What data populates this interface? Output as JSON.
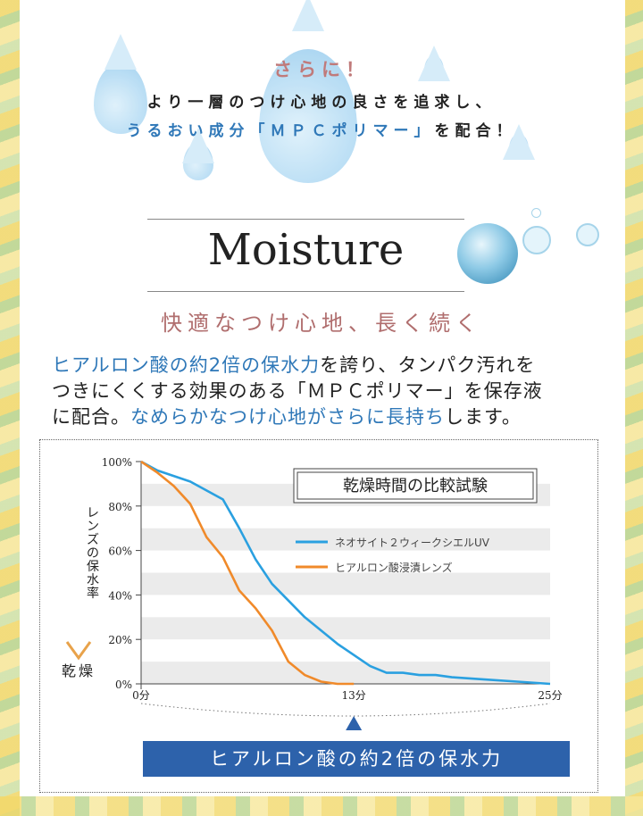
{
  "header": {
    "sarani": "さらに！",
    "line1": "より一層のつけ心地の良さを追求し、",
    "line2_pre": "うるおい成分「ＭＰＣポリマー」",
    "line2_post": "を配合！"
  },
  "section_title": "Moisture",
  "subhead": "快適なつけ心地、長く続く",
  "paragraph": {
    "p1_blue": "ヒアルロン酸の約2倍の保水力",
    "p1_rest": "を誇り、タンパク汚れを",
    "p2": "つきにくくする効果のある「ＭＰＣポリマー」を保存液",
    "p3_pre": "に配合。",
    "p3_blue": "なめらかなつけ心地がさらに長持ち",
    "p3_post": "します。"
  },
  "chart_data": {
    "type": "line",
    "title": "乾燥時間の比較試験",
    "ylabel": "レンズの保水率",
    "ylabel_bottom": "乾燥",
    "x_ticks": [
      "0分",
      "13分",
      "25分"
    ],
    "y_ticks": [
      "100%",
      "80%",
      "60%",
      "40%",
      "20%",
      "0%"
    ],
    "xlim": [
      0,
      25
    ],
    "ylim": [
      0,
      100
    ],
    "series": [
      {
        "name": "ネオサイト２ウィークシエルUV",
        "color": "#2aa0e0",
        "x": [
          0,
          1,
          3,
          5,
          6,
          7,
          8,
          10,
          12,
          14,
          15,
          16,
          17,
          18,
          19,
          21,
          23,
          25
        ],
        "y": [
          100,
          96,
          91,
          83,
          70,
          56,
          45,
          30,
          18,
          8,
          5,
          5,
          4,
          4,
          3,
          2,
          1,
          0
        ]
      },
      {
        "name": "ヒアルロン酸浸漬レンズ",
        "color": "#f08a2a",
        "x": [
          0,
          1,
          2,
          3,
          4,
          5,
          6,
          7,
          8,
          9,
          10,
          11,
          12,
          13
        ],
        "y": [
          100,
          95,
          89,
          81,
          66,
          57,
          42,
          34,
          24,
          10,
          4,
          1,
          0,
          0
        ]
      }
    ]
  },
  "banner": "ヒアルロン酸の約2倍の保水力",
  "colors": {
    "accent_blue": "#2f78b8",
    "accent_pink": "#b06e6e",
    "banner": "#2d62ab"
  }
}
